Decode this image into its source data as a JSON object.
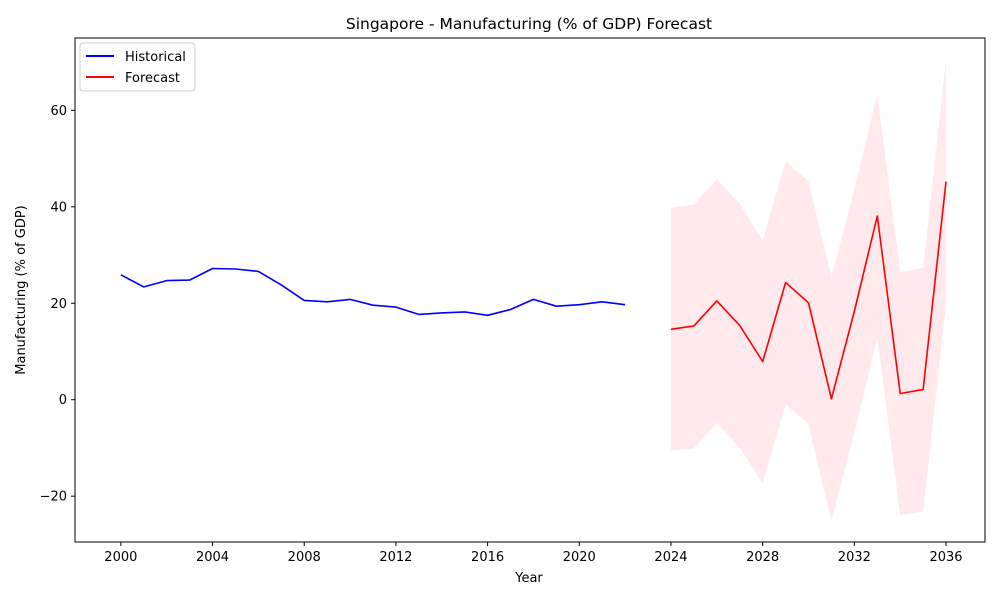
{
  "chart_data": {
    "type": "line",
    "title": "Singapore - Manufacturing (% of GDP) Forecast",
    "xlabel": "Year",
    "ylabel": "Manufacturing (% of GDP)",
    "xlim": [
      1998,
      2037.7
    ],
    "ylim": [
      -29.5,
      75
    ],
    "xticks": [
      2000,
      2004,
      2008,
      2012,
      2016,
      2020,
      2024,
      2028,
      2032,
      2036
    ],
    "yticks": [
      -20,
      0,
      20,
      40,
      60
    ],
    "ytick_labels": [
      "−20",
      "0",
      "20",
      "40",
      "60"
    ],
    "grid": false,
    "legend": "top-left",
    "series": [
      {
        "name": "Historical",
        "color": "#0000ff",
        "x": [
          2000,
          2001,
          2002,
          2003,
          2004,
          2005,
          2006,
          2007,
          2008,
          2009,
          2010,
          2011,
          2012,
          2013,
          2014,
          2015,
          2016,
          2017,
          2018,
          2019,
          2020,
          2021,
          2022
        ],
        "y": [
          25.9,
          23.4,
          24.7,
          24.8,
          27.2,
          27.1,
          26.6,
          23.8,
          20.6,
          20.3,
          20.8,
          19.6,
          19.2,
          17.7,
          18.0,
          18.2,
          17.5,
          18.7,
          20.8,
          19.4,
          19.7,
          20.3,
          19.7
        ]
      },
      {
        "name": "Forecast",
        "color": "#ff0000",
        "x": [
          2024,
          2025,
          2026,
          2027,
          2028,
          2029,
          2030,
          2031,
          2032,
          2033,
          2034,
          2035,
          2036
        ],
        "y": [
          14.6,
          15.3,
          20.5,
          15.4,
          7.9,
          24.3,
          20.1,
          0.2,
          18.3,
          38.1,
          1.3,
          2.1,
          45.2
        ]
      }
    ],
    "confidence_band": {
      "color": "#ffc0cb",
      "x": [
        2024,
        2025,
        2026,
        2027,
        2028,
        2029,
        2030,
        2031,
        2032,
        2033,
        2034,
        2035,
        2036
      ],
      "lower": [
        -10.6,
        -10.1,
        -4.8,
        -9.9,
        -17.4,
        -0.9,
        -5.1,
        -25.0,
        -6.9,
        12.9,
        -23.9,
        -23.2,
        19.9
      ],
      "upper": [
        39.8,
        40.5,
        45.7,
        40.6,
        33.1,
        49.5,
        45.3,
        25.4,
        43.5,
        63.3,
        26.5,
        27.3,
        70.4
      ]
    }
  }
}
